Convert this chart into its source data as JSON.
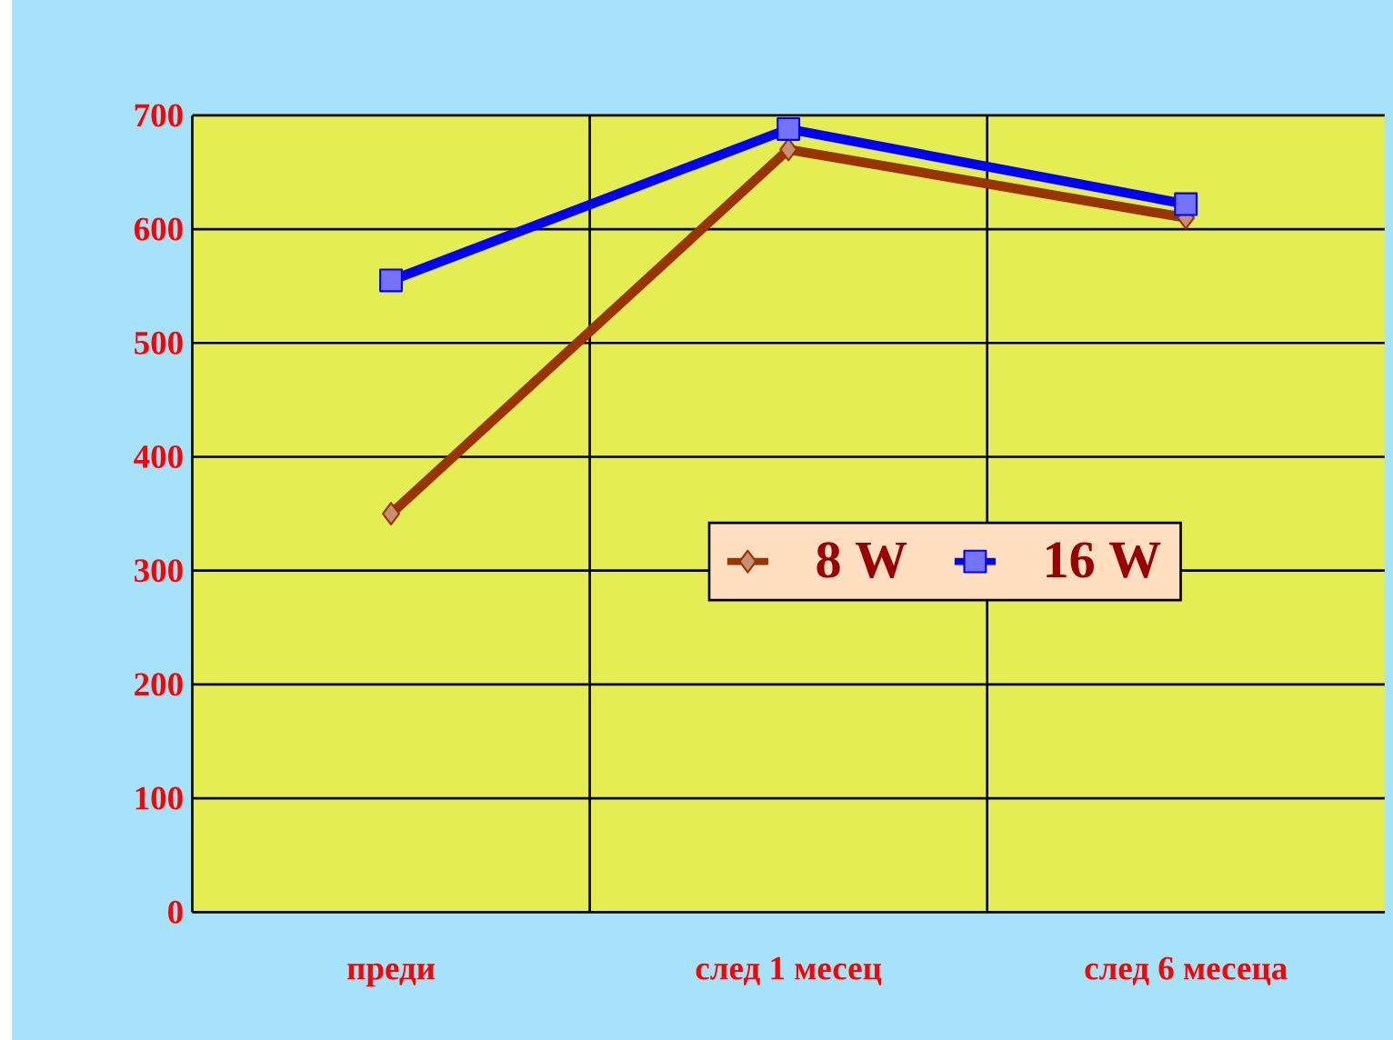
{
  "chart_data": {
    "type": "line",
    "categories": [
      "преди",
      "след 1 месец",
      "след 6 месеца"
    ],
    "series": [
      {
        "name": "8 W",
        "color": "#993300",
        "marker": "diamond",
        "values": [
          350,
          670,
          610
        ]
      },
      {
        "name": "16 W",
        "color": "#0000ff",
        "marker": "square",
        "values": [
          555,
          688,
          622
        ]
      }
    ],
    "ylim": [
      0,
      700
    ],
    "yticks": [
      0,
      100,
      200,
      300,
      400,
      500,
      600,
      700
    ],
    "grid": true,
    "legend": "right"
  }
}
